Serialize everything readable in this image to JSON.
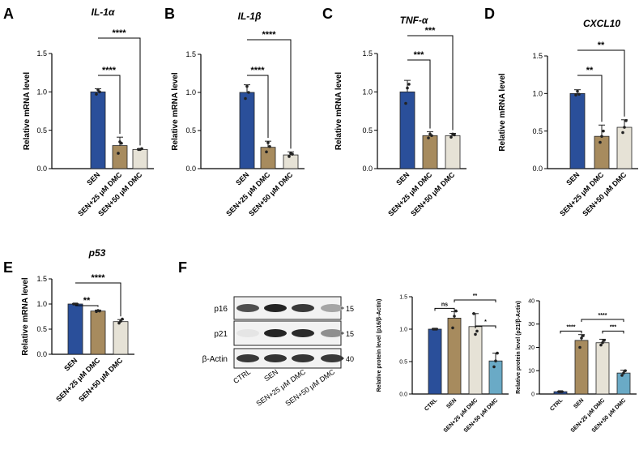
{
  "panels": [
    {
      "letter": "A",
      "title": "IL-1α",
      "ylabel": "Relative mRNA level",
      "categories": [
        "SEN",
        "SEN+25 μM DMC",
        "SEN+50 μM DMC"
      ],
      "yticks": [
        "0.0",
        "0.5",
        "1.0",
        "1.5"
      ]
    },
    {
      "letter": "B",
      "title": "IL-1β",
      "ylabel": "Relative mRNA level",
      "categories": [
        "SEN",
        "SEN+25 μM DMC",
        "SEN+50 μM DMC"
      ],
      "yticks": [
        "0.0",
        "0.5",
        "1.0",
        "1.5"
      ]
    },
    {
      "letter": "C",
      "title": "TNF-α",
      "ylabel": "Relative mRNA level",
      "categories": [
        "SEN",
        "SEN+25 μM DMC",
        "SEN+50 μM DMC"
      ],
      "yticks": [
        "0.0",
        "0.5",
        "1.0",
        "1.5"
      ]
    },
    {
      "letter": "D",
      "title": "CXCL10",
      "ylabel": "Relative mRNA level",
      "categories": [
        "SEN",
        "SEN+25 μM DMC",
        "SEN+50 μM DMC"
      ],
      "yticks": [
        "0.0",
        "0.5",
        "1.0",
        "1.5"
      ]
    },
    {
      "letter": "E",
      "title": "p53",
      "ylabel": "Relative mRNA level",
      "categories": [
        "SEN",
        "SEN+25 μM DMC",
        "SEN+50 μM DMC"
      ],
      "yticks": [
        "0.0",
        "0.5",
        "1.0",
        "1.5"
      ]
    },
    {
      "letter": "F",
      "ylabel": "Relative protein level (p16/β-Actin)",
      "categories": [
        "CTRL",
        "SEN",
        "SEN+25 μM DMC",
        "SEN+50 μM DMC"
      ],
      "yticks": [
        "0.0",
        "0.5",
        "1.0",
        "1.5"
      ]
    },
    {
      "ylabel": "Relative protein level (p21/β-Actin)",
      "categories": [
        "CTRL",
        "SEN",
        "SEN+25 μM DMC",
        "SEN+50 μM DMC"
      ],
      "yticks": [
        "0",
        "10",
        "20",
        "30",
        "40"
      ]
    }
  ],
  "blot": {
    "rows": [
      "p16",
      "p21",
      "β-Actin"
    ],
    "markers": [
      "15",
      "15",
      "40"
    ],
    "lanes": [
      "CTRL",
      "SEN",
      "SEN+25 μM DMC",
      "SEN+50 μM DMC"
    ],
    "intensity": [
      [
        0.75,
        0.95,
        0.85,
        0.35
      ],
      [
        0.05,
        0.95,
        0.92,
        0.45
      ],
      [
        0.85,
        0.88,
        0.87,
        0.85
      ]
    ]
  },
  "colors": {
    "bars3": [
      "#2a4f9a",
      "#a78b5e",
      "#e6e2d6"
    ],
    "bars4": [
      "#2a4f9a",
      "#a78b5e",
      "#e6e2d6",
      "#6aaac6"
    ]
  },
  "chart_data": [
    {
      "type": "bar",
      "ylim": [
        0,
        1.5
      ],
      "categories": [
        "SEN",
        "SEN+25 μM DMC",
        "SEN+50 μM DMC"
      ],
      "values": [
        1.0,
        0.3,
        0.25
      ],
      "errors": [
        0.04,
        0.11,
        0.01
      ],
      "points": [
        [
          0.97,
          1.03,
          1.0
        ],
        [
          0.2,
          0.35,
          0.33
        ],
        [
          0.25,
          0.25,
          0.26
        ]
      ],
      "significance": [
        {
          "from": 0,
          "to": 1,
          "label": "****"
        },
        {
          "from": 0,
          "to": 2,
          "label": "****"
        }
      ]
    },
    {
      "type": "bar",
      "ylim": [
        0,
        1.5
      ],
      "categories": [
        "SEN",
        "SEN+25 μM DMC",
        "SEN+50 μM DMC"
      ],
      "values": [
        1.0,
        0.28,
        0.18
      ],
      "errors": [
        0.1,
        0.08,
        0.04
      ],
      "points": [
        [
          0.92,
          1.08,
          1.0
        ],
        [
          0.22,
          0.34,
          0.29
        ],
        [
          0.16,
          0.2,
          0.19
        ]
      ],
      "significance": [
        {
          "from": 0,
          "to": 1,
          "label": "****"
        },
        {
          "from": 0,
          "to": 2,
          "label": "****"
        }
      ]
    },
    {
      "type": "bar",
      "ylim": [
        0,
        1.5
      ],
      "categories": [
        "SEN",
        "SEN+25 μM DMC",
        "SEN+50 μM DMC"
      ],
      "values": [
        1.0,
        0.43,
        0.43
      ],
      "errors": [
        0.15,
        0.05,
        0.03
      ],
      "points": [
        [
          0.85,
          1.05,
          1.1
        ],
        [
          0.4,
          0.45,
          0.43
        ],
        [
          0.41,
          0.45,
          0.44
        ]
      ],
      "significance": [
        {
          "from": 0,
          "to": 1,
          "label": "***"
        },
        {
          "from": 0,
          "to": 2,
          "label": "***"
        }
      ]
    },
    {
      "type": "bar",
      "ylim": [
        0,
        1.5
      ],
      "categories": [
        "SEN",
        "SEN+25 μM DMC",
        "SEN+50 μM DMC"
      ],
      "values": [
        1.0,
        0.43,
        0.55
      ],
      "errors": [
        0.05,
        0.15,
        0.1
      ],
      "points": [
        [
          0.98,
          1.03,
          0.99
        ],
        [
          0.35,
          0.43,
          0.5
        ],
        [
          0.48,
          0.55,
          0.64
        ]
      ],
      "significance": [
        {
          "from": 0,
          "to": 1,
          "label": "**"
        },
        {
          "from": 0,
          "to": 2,
          "label": "**"
        }
      ]
    },
    {
      "type": "bar",
      "ylim": [
        0,
        1.5
      ],
      "categories": [
        "SEN",
        "SEN+25 μM DMC",
        "SEN+50 μM DMC"
      ],
      "values": [
        1.0,
        0.86,
        0.65
      ],
      "errors": [
        0.01,
        0.02,
        0.04
      ],
      "points": [
        [
          1.0,
          1.0,
          1.0
        ],
        [
          0.85,
          0.87,
          0.86
        ],
        [
          0.62,
          0.66,
          0.7
        ]
      ],
      "significance": [
        {
          "from": 0,
          "to": 1,
          "label": "**"
        },
        {
          "from": 0,
          "to": 2,
          "label": "****"
        }
      ]
    },
    {
      "type": "bar",
      "ylim": [
        0,
        1.5
      ],
      "categories": [
        "CTRL",
        "SEN",
        "SEN+25 μM DMC",
        "SEN+50 μM DMC"
      ],
      "values": [
        1.0,
        1.17,
        1.04,
        0.51
      ],
      "errors": [
        0.01,
        0.1,
        0.2,
        0.12
      ],
      "points": [
        [
          1.0,
          1.0,
          1.0
        ],
        [
          1.02,
          1.2,
          1.28
        ],
        [
          1.24,
          0.92,
          0.97
        ],
        [
          0.42,
          0.51,
          0.63
        ]
      ],
      "significance": [
        {
          "from": 0,
          "to": 1,
          "label": "ns"
        },
        {
          "from": 2,
          "to": 3,
          "label": "*"
        },
        {
          "from": 1,
          "to": 3,
          "label": "**"
        }
      ]
    },
    {
      "type": "bar",
      "ylim": [
        0,
        40
      ],
      "categories": [
        "CTRL",
        "SEN",
        "SEN+25 μM DMC",
        "SEN+50 μM DMC"
      ],
      "values": [
        1.0,
        23,
        22,
        9
      ],
      "errors": [
        0.1,
        2.5,
        1.5,
        1.2
      ],
      "points": [
        [
          1.0,
          1.0,
          1.0
        ],
        [
          20,
          24,
          25
        ],
        [
          21,
          22,
          23
        ],
        [
          8,
          9,
          10
        ]
      ],
      "significance": [
        {
          "from": 0,
          "to": 1,
          "label": "****"
        },
        {
          "from": 2,
          "to": 3,
          "label": "***"
        },
        {
          "from": 1,
          "to": 3,
          "label": "****"
        }
      ]
    }
  ]
}
